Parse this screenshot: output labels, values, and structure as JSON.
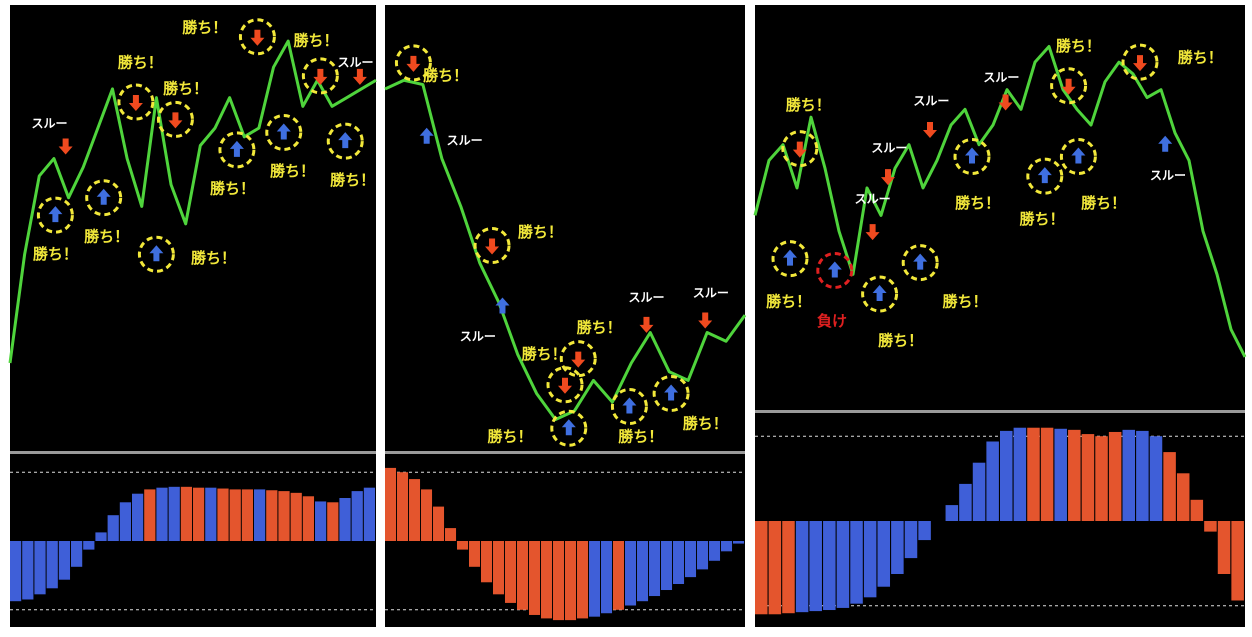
{
  "chart_data": [
    {
      "type": "line",
      "color": "#4fd43c",
      "ylim": [
        0,
        100
      ],
      "values": [
        20,
        45,
        63,
        67,
        58,
        65,
        74,
        83,
        67,
        56,
        81,
        61,
        52,
        70,
        74,
        81,
        72,
        74,
        88,
        94,
        79,
        85,
        79,
        81,
        83,
        85
      ],
      "markers": [
        {
          "x": 3.1,
          "y": 54,
          "direction": "up",
          "color": "#3f6fe0",
          "circle": "#f2e83a"
        },
        {
          "x": 6.4,
          "y": 58,
          "direction": "up",
          "color": "#3f6fe0",
          "circle": "#f2e83a"
        },
        {
          "x": 10.0,
          "y": 45,
          "direction": "up",
          "color": "#3f6fe0",
          "circle": "#f2e83a"
        },
        {
          "x": 8.6,
          "y": 80,
          "direction": "down",
          "color": "#f04a1f",
          "circle": "#f2e83a"
        },
        {
          "x": 11.3,
          "y": 76,
          "direction": "down",
          "color": "#f04a1f",
          "circle": "#f2e83a"
        },
        {
          "x": 3.8,
          "y": 70,
          "direction": "down",
          "color": "#f04a1f",
          "circle": null
        },
        {
          "x": 15.5,
          "y": 69,
          "direction": "up",
          "color": "#3f6fe0",
          "circle": "#f2e83a"
        },
        {
          "x": 16.9,
          "y": 95,
          "direction": "down",
          "color": "#f04a1f",
          "circle": "#f2e83a"
        },
        {
          "x": 18.7,
          "y": 73,
          "direction": "up",
          "color": "#3f6fe0",
          "circle": "#f2e83a"
        },
        {
          "x": 21.2,
          "y": 86,
          "direction": "down",
          "color": "#f04a1f",
          "circle": "#f2e83a"
        },
        {
          "x": 22.9,
          "y": 71,
          "direction": "up",
          "color": "#3f6fe0",
          "circle": "#f2e83a"
        },
        {
          "x": 23.9,
          "y": 86,
          "direction": "down",
          "color": "#f04a1f",
          "circle": null
        }
      ],
      "annotations": [
        {
          "text": "スルー",
          "x": 2.7,
          "y": 75,
          "color": "#ffffff"
        },
        {
          "text": "勝ち！",
          "x": 3.1,
          "y": 45,
          "color": "#f2e83a"
        },
        {
          "text": "勝ち！",
          "x": 6.6,
          "y": 49,
          "color": "#f2e83a"
        },
        {
          "text": "勝ち！",
          "x": 13.9,
          "y": 44,
          "color": "#f2e83a"
        },
        {
          "text": "勝ち！",
          "x": 8.9,
          "y": 89,
          "color": "#f2e83a"
        },
        {
          "text": "勝ち！",
          "x": 12.0,
          "y": 83,
          "color": "#f2e83a"
        },
        {
          "text": "勝ち！",
          "x": 13.3,
          "y": 97,
          "color": "#f2e83a"
        },
        {
          "text": "勝ち！",
          "x": 15.2,
          "y": 60,
          "color": "#f2e83a"
        },
        {
          "text": "勝ち！",
          "x": 19.3,
          "y": 64,
          "color": "#f2e83a"
        },
        {
          "text": "勝ち！",
          "x": 20.9,
          "y": 94,
          "color": "#f2e83a"
        },
        {
          "text": "勝ち！",
          "x": 23.4,
          "y": 62,
          "color": "#f2e83a"
        },
        {
          "text": "スルー",
          "x": 23.6,
          "y": 89,
          "color": "#ffffff"
        }
      ],
      "histogram": {
        "type": "bar",
        "ylim": [
          -100,
          100
        ],
        "levels": [
          80,
          -80
        ],
        "values": [
          -70,
          -68,
          -62,
          -55,
          -45,
          -30,
          -10,
          10,
          30,
          45,
          55,
          60,
          62,
          63,
          63,
          62,
          62,
          61,
          60,
          60,
          60,
          59,
          58,
          56,
          52,
          46,
          45,
          50,
          58,
          62
        ],
        "colors": [
          "#3f5fd8",
          "#3f5fd8",
          "#3f5fd8",
          "#3f5fd8",
          "#3f5fd8",
          "#3f5fd8",
          "#3f5fd8",
          "#3f5fd8",
          "#3f5fd8",
          "#3f5fd8",
          "#3f5fd8",
          "#e4552d",
          "#3f5fd8",
          "#3f5fd8",
          "#e4552d",
          "#e4552d",
          "#3f5fd8",
          "#e4552d",
          "#e4552d",
          "#e4552d",
          "#3f5fd8",
          "#e4552d",
          "#e4552d",
          "#e4552d",
          "#e4552d",
          "#3f5fd8",
          "#e4552d",
          "#3f5fd8",
          "#3f5fd8",
          "#3f5fd8"
        ]
      }
    },
    {
      "type": "line",
      "color": "#4fd43c",
      "ylim": [
        0,
        100
      ],
      "values": [
        83,
        85,
        84,
        67,
        56,
        43,
        34,
        22,
        13,
        7,
        9,
        16,
        11,
        20,
        27,
        18,
        16,
        27,
        25,
        31
      ],
      "markers": [
        {
          "x": 1.5,
          "y": 89,
          "direction": "down",
          "color": "#f04a1f",
          "circle": "#f2e83a"
        },
        {
          "x": 2.2,
          "y": 72,
          "direction": "up",
          "color": "#3f6fe0",
          "circle": null
        },
        {
          "x": 5.65,
          "y": 47,
          "direction": "down",
          "color": "#f04a1f",
          "circle": "#f2e83a"
        },
        {
          "x": 6.2,
          "y": 33,
          "direction": "up",
          "color": "#3f6fe0",
          "circle": null
        },
        {
          "x": 10.2,
          "y": 21,
          "direction": "down",
          "color": "#f04a1f",
          "circle": "#f2e83a"
        },
        {
          "x": 9.5,
          "y": 15,
          "direction": "down",
          "color": "#f04a1f",
          "circle": "#f2e83a"
        },
        {
          "x": 9.7,
          "y": 5,
          "direction": "up",
          "color": "#3f6fe0",
          "circle": "#f2e83a"
        },
        {
          "x": 12.9,
          "y": 10,
          "direction": "up",
          "color": "#3f6fe0",
          "circle": "#f2e83a"
        },
        {
          "x": 15.1,
          "y": 13,
          "direction": "up",
          "color": "#3f6fe0",
          "circle": "#f2e83a"
        },
        {
          "x": 13.8,
          "y": 29,
          "direction": "down",
          "color": "#f04a1f",
          "circle": null
        },
        {
          "x": 16.9,
          "y": 30,
          "direction": "down",
          "color": "#f04a1f",
          "circle": null
        }
      ],
      "annotations": [
        {
          "text": "勝ち！",
          "x": 3.2,
          "y": 86,
          "color": "#f2e83a"
        },
        {
          "text": "スルー",
          "x": 4.2,
          "y": 71,
          "color": "#ffffff"
        },
        {
          "text": "勝ち！",
          "x": 8.2,
          "y": 50,
          "color": "#f2e83a"
        },
        {
          "text": "スルー",
          "x": 4.9,
          "y": 26,
          "color": "#ffffff"
        },
        {
          "text": "勝ち！",
          "x": 8.4,
          "y": 22,
          "color": "#f2e83a"
        },
        {
          "text": "勝ち！",
          "x": 11.3,
          "y": 28,
          "color": "#f2e83a"
        },
        {
          "text": "勝ち！",
          "x": 6.6,
          "y": 3,
          "color": "#f2e83a"
        },
        {
          "text": "勝ち！",
          "x": 13.5,
          "y": 3,
          "color": "#f2e83a"
        },
        {
          "text": "勝ち！",
          "x": 16.9,
          "y": 6,
          "color": "#f2e83a"
        },
        {
          "text": "スルー",
          "x": 13.8,
          "y": 35,
          "color": "#ffffff"
        },
        {
          "text": "スルー",
          "x": 17.2,
          "y": 36,
          "color": "#ffffff"
        }
      ],
      "histogram": {
        "type": "bar",
        "ylim": [
          -100,
          100
        ],
        "levels": [
          80,
          -80
        ],
        "values": [
          85,
          80,
          72,
          60,
          40,
          15,
          -10,
          -30,
          -48,
          -62,
          -72,
          -80,
          -86,
          -90,
          -92,
          -92,
          -90,
          -88,
          -84,
          -80,
          -75,
          -70,
          -64,
          -57,
          -50,
          -42,
          -33,
          -23,
          -12,
          -3
        ],
        "colors": [
          "#e4552d",
          "#e4552d",
          "#e4552d",
          "#e4552d",
          "#e4552d",
          "#e4552d",
          "#e4552d",
          "#e4552d",
          "#e4552d",
          "#e4552d",
          "#e4552d",
          "#e4552d",
          "#e4552d",
          "#e4552d",
          "#e4552d",
          "#e4552d",
          "#e4552d",
          "#3f5fd8",
          "#3f5fd8",
          "#e4552d",
          "#3f5fd8",
          "#3f5fd8",
          "#3f5fd8",
          "#3f5fd8",
          "#3f5fd8",
          "#3f5fd8",
          "#3f5fd8",
          "#3f5fd8",
          "#3f5fd8",
          "#3f5fd8"
        ]
      }
    },
    {
      "type": "line",
      "color": "#4fd43c",
      "ylim": [
        0,
        100
      ],
      "values": [
        49,
        63,
        67,
        56,
        74,
        61,
        45,
        34,
        56,
        49,
        61,
        67,
        56,
        63,
        72,
        76,
        67,
        72,
        81,
        76,
        88,
        92,
        81,
        76,
        72,
        83,
        88,
        85,
        79,
        81,
        70,
        63,
        45,
        34,
        20,
        13
      ],
      "markers": [
        {
          "x": 3.2,
          "y": 66,
          "direction": "down",
          "color": "#f04a1f",
          "circle": "#f2e83a"
        },
        {
          "x": 2.5,
          "y": 38,
          "direction": "up",
          "color": "#3f6fe0",
          "circle": "#f2e83a"
        },
        {
          "x": 5.7,
          "y": 35,
          "direction": "up",
          "color": "#3f6fe0",
          "circle": "#e02020"
        },
        {
          "x": 8.4,
          "y": 45,
          "direction": "down",
          "color": "#f04a1f",
          "circle": null
        },
        {
          "x": 8.9,
          "y": 29,
          "direction": "up",
          "color": "#3f6fe0",
          "circle": "#f2e83a"
        },
        {
          "x": 9.5,
          "y": 59,
          "direction": "down",
          "color": "#f04a1f",
          "circle": null
        },
        {
          "x": 11.8,
          "y": 37,
          "direction": "up",
          "color": "#3f6fe0",
          "circle": "#f2e83a"
        },
        {
          "x": 12.5,
          "y": 71,
          "direction": "down",
          "color": "#f04a1f",
          "circle": null
        },
        {
          "x": 15.5,
          "y": 64,
          "direction": "up",
          "color": "#3f6fe0",
          "circle": "#f2e83a"
        },
        {
          "x": 17.9,
          "y": 78,
          "direction": "down",
          "color": "#f04a1f",
          "circle": null
        },
        {
          "x": 20.7,
          "y": 59,
          "direction": "up",
          "color": "#3f6fe0",
          "circle": "#f2e83a"
        },
        {
          "x": 22.4,
          "y": 82,
          "direction": "down",
          "color": "#f04a1f",
          "circle": "#f2e83a"
        },
        {
          "x": 23.1,
          "y": 64,
          "direction": "up",
          "color": "#3f6fe0",
          "circle": "#f2e83a"
        },
        {
          "x": 27.5,
          "y": 88,
          "direction": "down",
          "color": "#f04a1f",
          "circle": "#f2e83a"
        },
        {
          "x": 29.3,
          "y": 67,
          "direction": "up",
          "color": "#3f6fe0",
          "circle": null
        }
      ],
      "annotations": [
        {
          "text": "勝ち！",
          "x": 3.8,
          "y": 77,
          "color": "#f2e83a"
        },
        {
          "text": "勝ち！",
          "x": 2.4,
          "y": 27,
          "color": "#f2e83a"
        },
        {
          "text": "負け",
          "x": 5.5,
          "y": 22,
          "color": "#e02020"
        },
        {
          "text": "勝ち！",
          "x": 10.4,
          "y": 17,
          "color": "#f2e83a"
        },
        {
          "text": "勝ち！",
          "x": 15.0,
          "y": 27,
          "color": "#f2e83a"
        },
        {
          "text": "スルー",
          "x": 8.4,
          "y": 53,
          "color": "#ffffff"
        },
        {
          "text": "スルー",
          "x": 9.6,
          "y": 66,
          "color": "#ffffff"
        },
        {
          "text": "スルー",
          "x": 12.6,
          "y": 78,
          "color": "#ffffff"
        },
        {
          "text": "スルー",
          "x": 17.6,
          "y": 84,
          "color": "#ffffff"
        },
        {
          "text": "勝ち！",
          "x": 15.9,
          "y": 52,
          "color": "#f2e83a"
        },
        {
          "text": "勝ち！",
          "x": 20.5,
          "y": 48,
          "color": "#f2e83a"
        },
        {
          "text": "勝ち！",
          "x": 23.1,
          "y": 92,
          "color": "#f2e83a"
        },
        {
          "text": "勝ち！",
          "x": 24.9,
          "y": 52,
          "color": "#f2e83a"
        },
        {
          "text": "勝ち！",
          "x": 31.8,
          "y": 89,
          "color": "#f2e83a"
        },
        {
          "text": "スルー",
          "x": 29.5,
          "y": 59,
          "color": "#ffffff"
        }
      ],
      "histogram": {
        "type": "bar",
        "ylim": [
          -100,
          100
        ],
        "levels": [
          80,
          -80
        ],
        "values": [
          -88,
          -88,
          -87,
          -86,
          -85,
          -84,
          -82,
          -78,
          -72,
          -62,
          -50,
          -35,
          -18,
          0,
          15,
          35,
          55,
          75,
          85,
          88,
          88,
          88,
          87,
          86,
          82,
          80,
          84,
          86,
          85,
          80,
          65,
          45,
          20,
          -10,
          -50,
          -75
        ],
        "colors": [
          "#e4552d",
          "#e4552d",
          "#e4552d",
          "#3f5fd8",
          "#3f5fd8",
          "#3f5fd8",
          "#3f5fd8",
          "#3f5fd8",
          "#3f5fd8",
          "#3f5fd8",
          "#3f5fd8",
          "#3f5fd8",
          "#3f5fd8",
          "#3f5fd8",
          "#3f5fd8",
          "#3f5fd8",
          "#3f5fd8",
          "#3f5fd8",
          "#3f5fd8",
          "#3f5fd8",
          "#e4552d",
          "#e4552d",
          "#3f5fd8",
          "#e4552d",
          "#e4552d",
          "#e4552d",
          "#e4552d",
          "#3f5fd8",
          "#3f5fd8",
          "#3f5fd8",
          "#e4552d",
          "#e4552d",
          "#e4552d",
          "#e4552d",
          "#e4552d",
          "#e4552d"
        ]
      }
    }
  ]
}
